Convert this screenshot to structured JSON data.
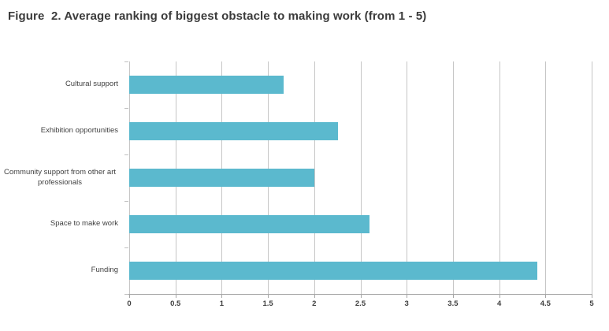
{
  "title": "Figure  2. Average ranking of biggest obstacle to making work (from 1 - 5)",
  "chart_data": {
    "type": "bar",
    "orientation": "horizontal",
    "title": "Figure  2. Average ranking of biggest obstacle to making work (from 1 - 5)",
    "categories": [
      "Cultural support",
      "Exhibition opportunities",
      "Community support from other art professionals",
      "Space to make work",
      "Funding"
    ],
    "values": [
      1.67,
      2.26,
      2.0,
      2.6,
      4.41
    ],
    "xlabel": "",
    "ylabel": "",
    "xlim": [
      0,
      5
    ],
    "x_ticks": [
      0,
      0.5,
      1,
      1.5,
      2,
      2.5,
      3,
      3.5,
      4,
      4.5,
      5
    ],
    "x_tick_labels": [
      "0",
      "0.5",
      "1",
      "1.5",
      "2",
      "2.5",
      "3",
      "3.5",
      "4",
      "4.5",
      "5"
    ],
    "grid": true,
    "legend": false,
    "bar_color": "#5bb9ce"
  },
  "colors": {
    "bar": "#5bb9ce",
    "gridline": "#c6c6c6",
    "axis_line": "#a6a6a6",
    "tick_text": "#3f3f3f",
    "title_text": "#3b3b3b",
    "background": "#ffffff"
  }
}
